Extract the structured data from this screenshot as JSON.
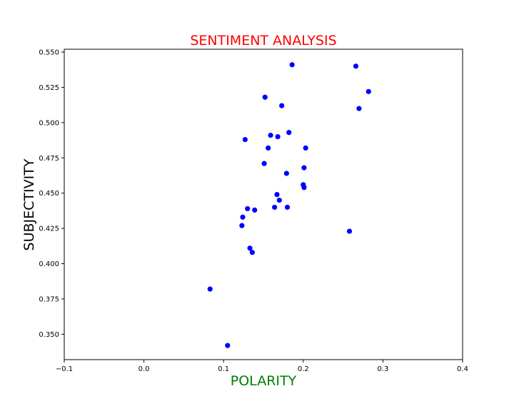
{
  "chart_data": {
    "type": "scatter",
    "title": "SENTIMENT ANALYSIS",
    "xlabel": "POLARITY",
    "ylabel": "SUBJECTIVITY",
    "xlim": [
      -0.1,
      0.4
    ],
    "ylim": [
      0.332,
      0.552
    ],
    "xticks": [
      -0.1,
      0.0,
      0.1,
      0.2,
      0.3,
      0.4
    ],
    "xtick_labels": [
      "−0.1",
      "0.0",
      "0.1",
      "0.2",
      "0.3",
      "0.4"
    ],
    "yticks": [
      0.35,
      0.375,
      0.4,
      0.425,
      0.45,
      0.475,
      0.5,
      0.525,
      0.55
    ],
    "ytick_labels": [
      "0.350",
      "0.375",
      "0.400",
      "0.425",
      "0.450",
      "0.475",
      "0.500",
      "0.525",
      "0.550"
    ],
    "grid": false,
    "colors": {
      "points": "#0000ff",
      "title": "#ff0000",
      "xlabel": "#008000",
      "ylabel": "#000000"
    },
    "points": [
      {
        "x": 0.083,
        "y": 0.382
      },
      {
        "x": 0.105,
        "y": 0.342
      },
      {
        "x": 0.123,
        "y": 0.427
      },
      {
        "x": 0.124,
        "y": 0.433
      },
      {
        "x": 0.127,
        "y": 0.488
      },
      {
        "x": 0.13,
        "y": 0.439
      },
      {
        "x": 0.133,
        "y": 0.411
      },
      {
        "x": 0.136,
        "y": 0.408
      },
      {
        "x": 0.139,
        "y": 0.438
      },
      {
        "x": 0.151,
        "y": 0.471
      },
      {
        "x": 0.152,
        "y": 0.518
      },
      {
        "x": 0.156,
        "y": 0.482
      },
      {
        "x": 0.159,
        "y": 0.491
      },
      {
        "x": 0.164,
        "y": 0.44
      },
      {
        "x": 0.167,
        "y": 0.449
      },
      {
        "x": 0.168,
        "y": 0.49
      },
      {
        "x": 0.17,
        "y": 0.445
      },
      {
        "x": 0.173,
        "y": 0.512
      },
      {
        "x": 0.179,
        "y": 0.464
      },
      {
        "x": 0.18,
        "y": 0.44
      },
      {
        "x": 0.182,
        "y": 0.493
      },
      {
        "x": 0.186,
        "y": 0.541
      },
      {
        "x": 0.2,
        "y": 0.456
      },
      {
        "x": 0.201,
        "y": 0.468
      },
      {
        "x": 0.201,
        "y": 0.454
      },
      {
        "x": 0.203,
        "y": 0.482
      },
      {
        "x": 0.258,
        "y": 0.423
      },
      {
        "x": 0.266,
        "y": 0.54
      },
      {
        "x": 0.27,
        "y": 0.51
      },
      {
        "x": 0.282,
        "y": 0.522
      }
    ]
  }
}
